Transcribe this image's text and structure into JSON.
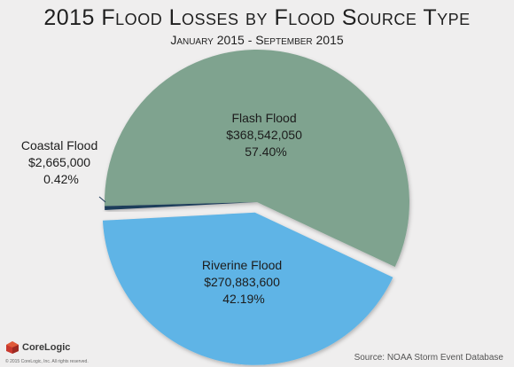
{
  "chart_data": {
    "type": "pie",
    "title": "2015 Flood Losses by Flood Source Type",
    "subtitle": "January 2015 - September 2015",
    "slices": [
      {
        "name": "Flash Flood",
        "value": 368542050,
        "value_label": "$368,542,050",
        "percent": 57.4,
        "percent_label": "57.40%",
        "color": "#7fa38f"
      },
      {
        "name": "Riverine Flood",
        "value": 270883600,
        "value_label": "$270,883,600",
        "percent": 42.19,
        "percent_label": "42.19%",
        "color": "#5fb4e6"
      },
      {
        "name": "Coastal Flood",
        "value": 2665000,
        "value_label": "$2,665,000",
        "percent": 0.42,
        "percent_label": "0.42%",
        "color": "#1f3c5a"
      }
    ],
    "exploded_slice": "Riverine Flood",
    "legend": "none"
  },
  "footer": {
    "source": "Source: NOAA Storm Event Database",
    "brand": "CoreLogic",
    "copyright": "© 2015 CoreLogic, Inc. All rights reserved."
  }
}
